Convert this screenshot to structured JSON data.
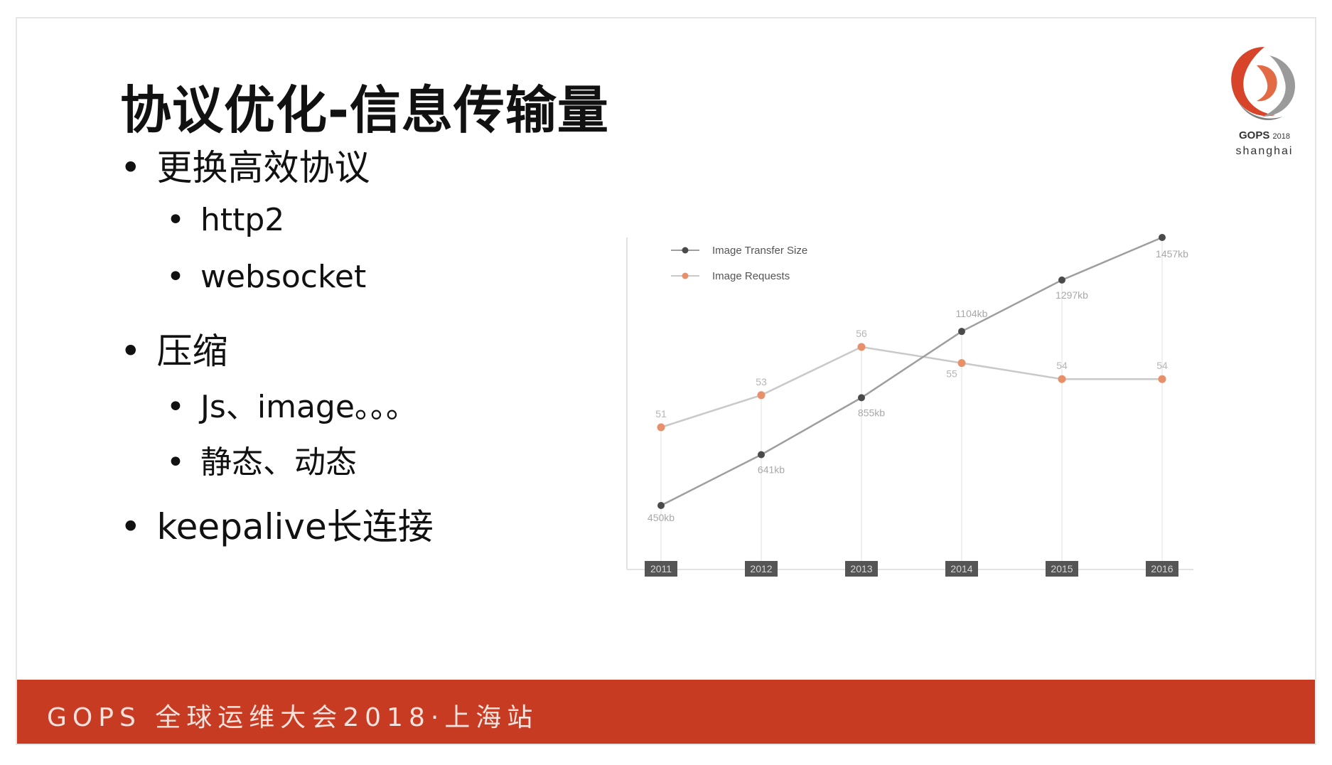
{
  "slide": {
    "title": "协议优化-信息传输量",
    "logo": {
      "brand": "GOPS",
      "year": "2018",
      "city": "shanghai"
    },
    "bullets": [
      {
        "text": "更换高效协议",
        "level": 1
      },
      {
        "text": "http2",
        "level": 2
      },
      {
        "text": "websocket",
        "level": 2
      },
      {
        "text": "压缩",
        "level": 1
      },
      {
        "text": "Js、image。。。",
        "level": 2
      },
      {
        "text": "静态、动态",
        "level": 2
      },
      {
        "text": "keepalive长连接",
        "level": 1
      }
    ],
    "footer": "GOPS 全球运维大会2018·上海站"
  },
  "colors": {
    "footer_bg": "#c63b22",
    "series_transfer": "#4a4a4a",
    "series_requests": "#e8906a",
    "axis_label_bg": "#555555"
  },
  "chart_data": {
    "type": "line",
    "categories": [
      "2011",
      "2012",
      "2013",
      "2014",
      "2015",
      "2016"
    ],
    "series": [
      {
        "name": "Image Transfer Size",
        "values": [
          450,
          641,
          855,
          1104,
          1297,
          1457
        ],
        "labels": [
          "450kb",
          "641kb",
          "855kb",
          "1104kb",
          "1297kb",
          "1457kb"
        ],
        "color": "#4a4a4a"
      },
      {
        "name": "Image Requests",
        "values": [
          51,
          53,
          56,
          55,
          54,
          54
        ],
        "labels": [
          "51",
          "53",
          "56",
          "55",
          "54",
          "54"
        ],
        "color": "#e8906a"
      }
    ],
    "legend_position": "top-left",
    "grid": false
  }
}
